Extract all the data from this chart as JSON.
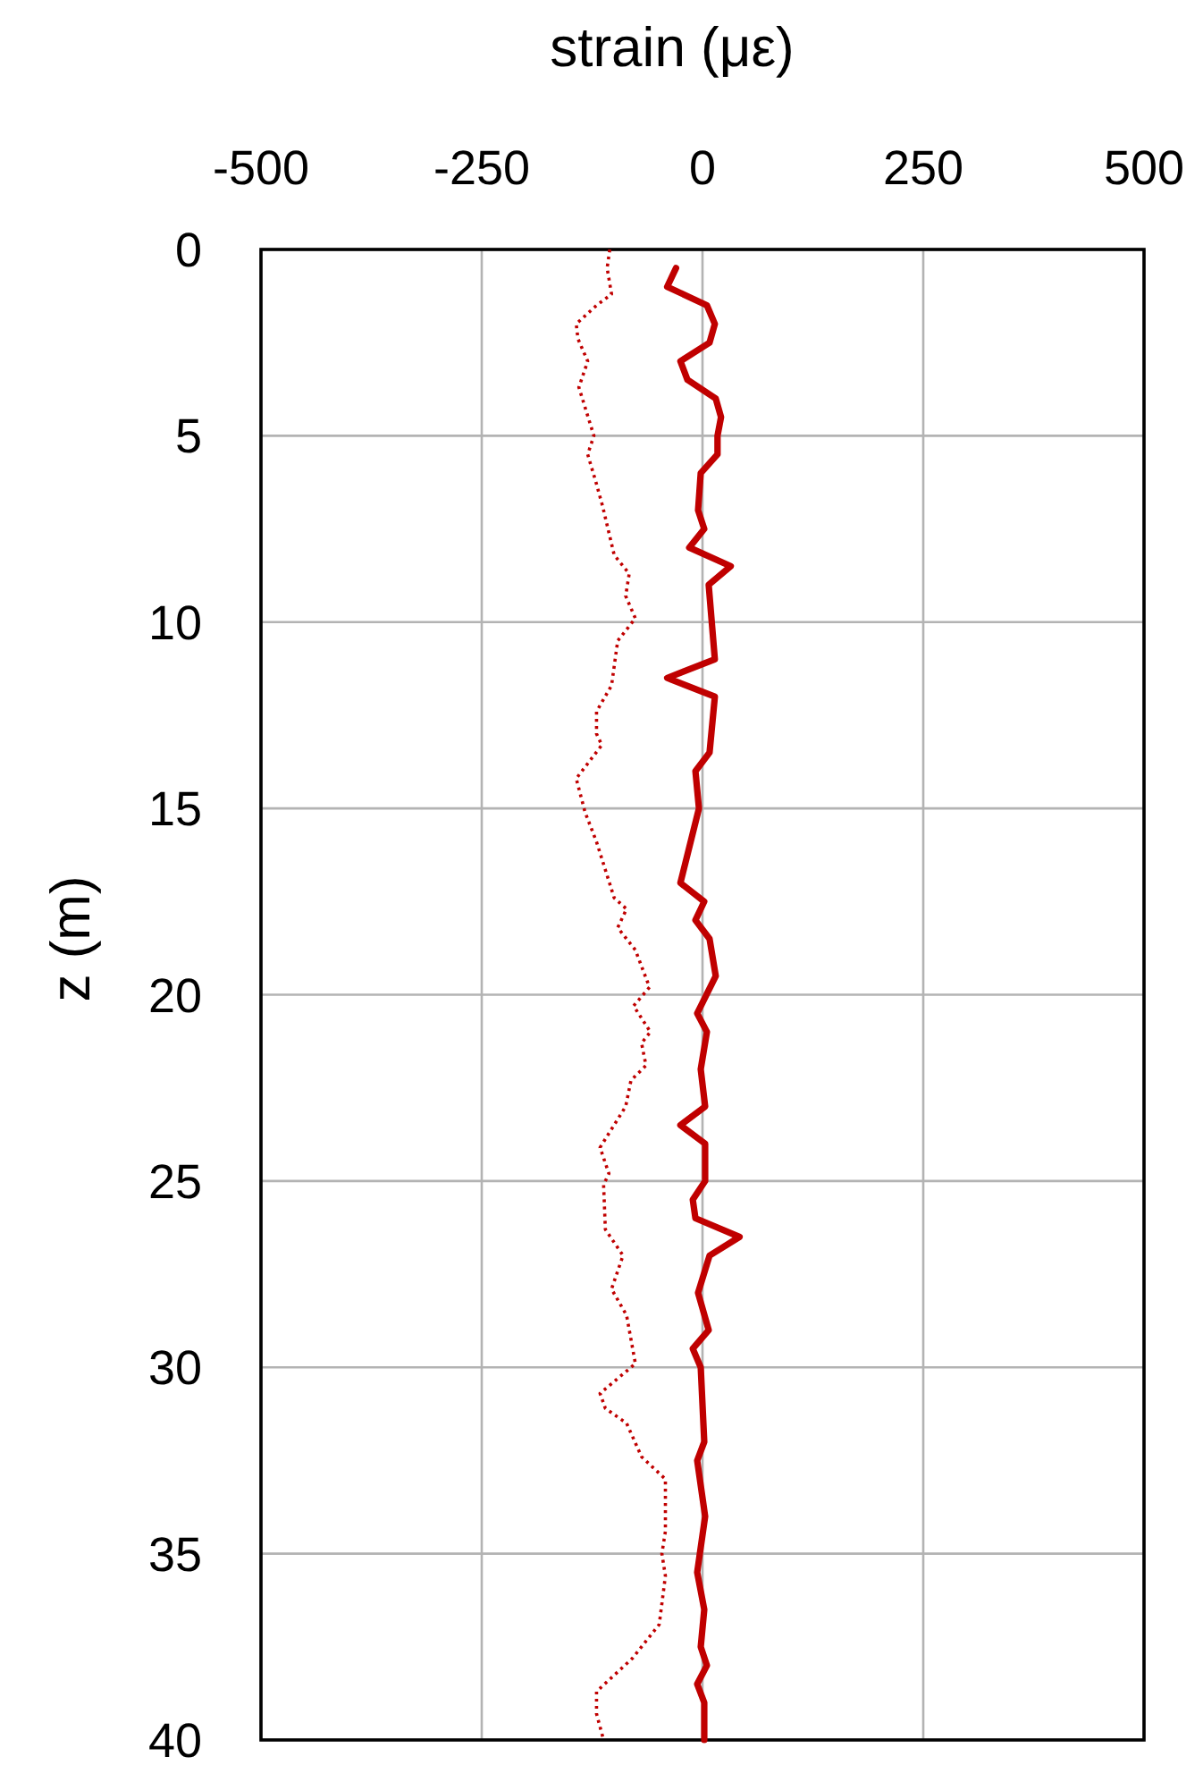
{
  "chart_data": {
    "type": "line",
    "xlabel": "strain (με)",
    "ylabel": "z (m)",
    "xlim": [
      -500,
      500
    ],
    "xticks": [
      -500,
      -250,
      0,
      250,
      500
    ],
    "ylim": [
      40,
      0
    ],
    "yticks": [
      0,
      5,
      10,
      15,
      20,
      25,
      30,
      35,
      40
    ],
    "grid": true,
    "series": [
      {
        "color": "#c00000",
        "line_style": "dotted",
        "x": [
          -105,
          -108,
          -103,
          -120,
          -143,
          -141,
          -130,
          -140,
          -123,
          -130,
          -120,
          -113,
          -100,
          -83,
          -87,
          -76,
          -96,
          -103,
          -120,
          -120,
          -114,
          -143,
          -133,
          -120,
          -100,
          -86,
          -96,
          -76,
          -60,
          -78,
          -59,
          -69,
          -64,
          -81,
          -87,
          -116,
          -106,
          -112,
          -110,
          -90,
          -103,
          -86,
          -76,
          -116,
          -110,
          -86,
          -69,
          -42,
          -42,
          -46,
          -42,
          -49,
          -79,
          -120,
          -120,
          -112
        ],
        "values": [
          0,
          0.5,
          1.2,
          1.5,
          2,
          2.4,
          3,
          3.7,
          5,
          5.5,
          6.3,
          6.9,
          8.2,
          8.7,
          9.3,
          9.9,
          10.5,
          11.7,
          12.4,
          13,
          13.3,
          14.2,
          15.1,
          15.9,
          17.4,
          17.7,
          18.2,
          18.8,
          19.8,
          20.3,
          21,
          21.3,
          21.9,
          22.3,
          23,
          24.1,
          24.8,
          25.1,
          26.3,
          27,
          27.9,
          28.6,
          29.9,
          30.7,
          31.1,
          31.5,
          32.4,
          33,
          34.4,
          35,
          35.6,
          36.9,
          37.8,
          38.7,
          39.3,
          40
        ]
      },
      {
        "color": "#c00000",
        "line_style": "solid",
        "x": [
          -30,
          -40,
          5,
          14,
          8,
          -25,
          -17,
          15,
          21,
          17,
          17,
          -2,
          -5,
          2,
          -15,
          32,
          7,
          14,
          -40,
          14,
          8,
          -8,
          -4,
          -25,
          2,
          -8,
          8,
          15,
          -6,
          5,
          -2,
          3,
          -25,
          3,
          3,
          -11,
          -8,
          42,
          8,
          -5,
          7,
          -11,
          -2,
          2,
          -6,
          3,
          -6,
          2,
          -2,
          5,
          -6,
          2,
          2
        ],
        "values": [
          0.5,
          1,
          1.5,
          2,
          2.5,
          3,
          3.5,
          4,
          4.5,
          5,
          5.5,
          6,
          7,
          7.5,
          8,
          8.5,
          9,
          11,
          11.5,
          12,
          13.5,
          14,
          15,
          17,
          17.5,
          18,
          18.5,
          19.5,
          20.5,
          21,
          22,
          23,
          23.5,
          24,
          25,
          25.5,
          26,
          26.5,
          27,
          28,
          29,
          29.5,
          30,
          32,
          32.5,
          34,
          35.5,
          36.5,
          37.5,
          38,
          38.5,
          39,
          40
        ]
      }
    ]
  }
}
